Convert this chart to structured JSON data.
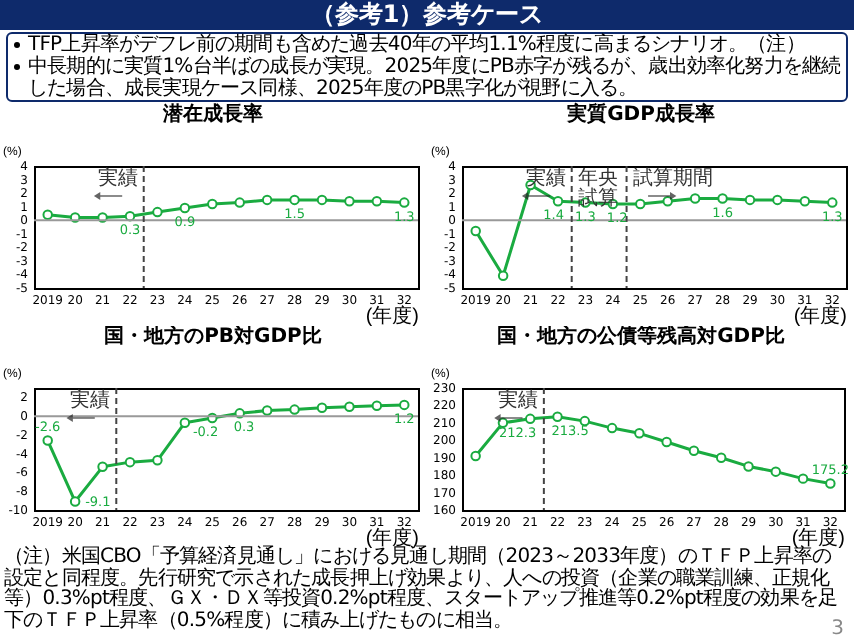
{
  "chart_data": [
    {
      "type": "other",
      "title": "（参考1）参考ケース",
      "annotations": [
        "TFP上昇率がデフレ前の期間も含めた過去40年の平均1.1%程度に高まるシナリオ。（注）",
        "中長期的に実質1%台半ばの成長が実現。2025年度にPB赤字が残るが、歳出効率化努力を継続した場合、成長実現ケース同様、2025年度のPB黒字化が視野に入る。"
      ]
    },
    {
      "type": "line",
      "title": "潜在成長率",
      "ylabel": "(%)",
      "xlabel": "(年度)",
      "marker": "circle",
      "line_style": "solid",
      "x": [
        2019,
        2020,
        2021,
        2022,
        2023,
        2024,
        2025,
        2026,
        2027,
        2028,
        2029,
        2030,
        2031,
        2032
      ],
      "xlim": [
        2018.5,
        2032.5
      ],
      "xticks": [
        {
          "value": 2019,
          "label": "2019"
        },
        {
          "value": 2020,
          "label": "20"
        },
        {
          "value": 2021,
          "label": "21"
        },
        {
          "value": 2022,
          "label": "22"
        },
        {
          "value": 2023,
          "label": "23"
        },
        {
          "value": 2024,
          "label": "24"
        },
        {
          "value": 2025,
          "label": "25"
        },
        {
          "value": 2026,
          "label": "26"
        },
        {
          "value": 2027,
          "label": "27"
        },
        {
          "value": 2028,
          "label": "28"
        },
        {
          "value": 2029,
          "label": "29"
        },
        {
          "value": 2030,
          "label": "30"
        },
        {
          "value": 2031,
          "label": "31"
        },
        {
          "value": 2032,
          "label": "32"
        }
      ],
      "ylim": [
        -5,
        4
      ],
      "yticks": [
        -5,
        -4,
        -3,
        -2,
        -1,
        0,
        1,
        2,
        3,
        4
      ],
      "series": [
        {
          "color": "#1aab40",
          "values": [
            0.4,
            0.2,
            0.2,
            0.3,
            0.6,
            0.9,
            1.2,
            1.3,
            1.5,
            1.5,
            1.5,
            1.4,
            1.4,
            1.3
          ],
          "value_labels": [
            null,
            null,
            null,
            "0.3",
            null,
            "0.9",
            null,
            null,
            null,
            "1.5",
            null,
            null,
            null,
            "1.3"
          ]
        }
      ],
      "ref_lines": [
        {
          "axis": "y",
          "value": 0,
          "color": "#999999",
          "line_style": "solid"
        },
        {
          "axis": "x",
          "value": 2022.5,
          "color": "#444444",
          "line_style": "dashed"
        }
      ],
      "annotations": [
        "実績"
      ]
    },
    {
      "type": "line",
      "title": "実質GDP成長率",
      "ylabel": "(%)",
      "xlabel": "(年度)",
      "marker": "circle",
      "line_style": "solid",
      "x": [
        2019,
        2020,
        2021,
        2022,
        2023,
        2024,
        2025,
        2026,
        2027,
        2028,
        2029,
        2030,
        2031,
        2032
      ],
      "xlim": [
        2018.5,
        2032.5
      ],
      "xticks": [
        {
          "value": 2019,
          "label": "2019"
        },
        {
          "value": 2020,
          "label": "20"
        },
        {
          "value": 2021,
          "label": "21"
        },
        {
          "value": 2022,
          "label": "22"
        },
        {
          "value": 2023,
          "label": "23"
        },
        {
          "value": 2024,
          "label": "24"
        },
        {
          "value": 2025,
          "label": "25"
        },
        {
          "value": 2026,
          "label": "26"
        },
        {
          "value": 2027,
          "label": "27"
        },
        {
          "value": 2028,
          "label": "28"
        },
        {
          "value": 2029,
          "label": "29"
        },
        {
          "value": 2030,
          "label": "30"
        },
        {
          "value": 2031,
          "label": "31"
        },
        {
          "value": 2032,
          "label": "32"
        }
      ],
      "ylim": [
        -5,
        4
      ],
      "yticks": [
        -5,
        -4,
        -3,
        -2,
        -1,
        0,
        1,
        2,
        3,
        4
      ],
      "series": [
        {
          "color": "#1aab40",
          "values": [
            -0.8,
            -4.1,
            2.6,
            1.4,
            1.3,
            1.2,
            1.2,
            1.4,
            1.6,
            1.6,
            1.5,
            1.5,
            1.4,
            1.3
          ],
          "value_labels": [
            null,
            null,
            null,
            "1.4",
            "1.3",
            "1.2",
            null,
            null,
            null,
            "1.6",
            null,
            null,
            null,
            "1.3"
          ]
        }
      ],
      "ref_lines": [
        {
          "axis": "y",
          "value": 0,
          "color": "#999999",
          "line_style": "solid"
        },
        {
          "axis": "x",
          "value": 2022.5,
          "color": "#444444",
          "line_style": "dashed"
        },
        {
          "axis": "x",
          "value": 2024.5,
          "color": "#444444",
          "line_style": "dashed"
        }
      ],
      "annotations": [
        "実績",
        "年央試算",
        "試算期間"
      ]
    },
    {
      "type": "line",
      "title": "国・地方のPB対GDP比",
      "ylabel": "(%)",
      "xlabel": "(年度)",
      "marker": "circle",
      "line_style": "solid",
      "x": [
        2019,
        2020,
        2021,
        2022,
        2023,
        2024,
        2025,
        2026,
        2027,
        2028,
        2029,
        2030,
        2031,
        2032
      ],
      "xlim": [
        2018.5,
        2032.5
      ],
      "xticks": [
        {
          "value": 2019,
          "label": "2019"
        },
        {
          "value": 2020,
          "label": "20"
        },
        {
          "value": 2021,
          "label": "21"
        },
        {
          "value": 2022,
          "label": "22"
        },
        {
          "value": 2023,
          "label": "23"
        },
        {
          "value": 2024,
          "label": "24"
        },
        {
          "value": 2025,
          "label": "25"
        },
        {
          "value": 2026,
          "label": "26"
        },
        {
          "value": 2027,
          "label": "27"
        },
        {
          "value": 2028,
          "label": "28"
        },
        {
          "value": 2029,
          "label": "29"
        },
        {
          "value": 2030,
          "label": "30"
        },
        {
          "value": 2031,
          "label": "31"
        },
        {
          "value": 2032,
          "label": "32"
        }
      ],
      "ylim": [
        -10,
        3
      ],
      "yticks": [
        -10,
        -8,
        -6,
        -4,
        -2,
        0,
        2
      ],
      "series": [
        {
          "color": "#1aab40",
          "values": [
            -2.6,
            -9.1,
            -5.4,
            -4.9,
            -4.7,
            -0.7,
            -0.2,
            0.3,
            0.6,
            0.7,
            0.9,
            1.0,
            1.1,
            1.2
          ],
          "value_labels": [
            "-2.6",
            "-9.1",
            null,
            null,
            null,
            null,
            "-0.2",
            "0.3",
            null,
            null,
            null,
            null,
            null,
            "1.2"
          ]
        }
      ],
      "ref_lines": [
        {
          "axis": "y",
          "value": 0,
          "color": "#999999",
          "line_style": "solid"
        },
        {
          "axis": "x",
          "value": 2021.5,
          "color": "#444444",
          "line_style": "dashed"
        }
      ],
      "annotations": [
        "実績"
      ]
    },
    {
      "type": "line",
      "title": "国・地方の公債等残高対GDP比",
      "ylabel": "(%)",
      "xlabel": "(年度)",
      "marker": "circle",
      "line_style": "solid",
      "x": [
        2019,
        2020,
        2021,
        2022,
        2023,
        2024,
        2025,
        2026,
        2027,
        2028,
        2029,
        2030,
        2031,
        2032
      ],
      "xlim": [
        2018.5,
        2032.5
      ],
      "xticks": [
        {
          "value": 2019,
          "label": "2019"
        },
        {
          "value": 2020,
          "label": "20"
        },
        {
          "value": 2021,
          "label": "21"
        },
        {
          "value": 2022,
          "label": "22"
        },
        {
          "value": 2023,
          "label": "23"
        },
        {
          "value": 2024,
          "label": "24"
        },
        {
          "value": 2025,
          "label": "25"
        },
        {
          "value": 2026,
          "label": "26"
        },
        {
          "value": 2027,
          "label": "27"
        },
        {
          "value": 2028,
          "label": "28"
        },
        {
          "value": 2029,
          "label": "29"
        },
        {
          "value": 2030,
          "label": "30"
        },
        {
          "value": 2031,
          "label": "31"
        },
        {
          "value": 2032,
          "label": "32"
        }
      ],
      "ylim": [
        160,
        230
      ],
      "yticks": [
        160,
        170,
        180,
        190,
        200,
        210,
        220,
        230
      ],
      "series": [
        {
          "color": "#1aab40",
          "values": [
            191,
            210,
            212.3,
            213.5,
            211,
            207,
            204,
            199,
            194,
            190,
            185,
            182,
            178,
            175.2
          ],
          "value_labels": [
            null,
            null,
            "212.3",
            "213.5",
            null,
            null,
            null,
            null,
            null,
            null,
            null,
            null,
            null,
            "175.2"
          ]
        }
      ],
      "ref_lines": [
        {
          "axis": "x",
          "value": 2021.5,
          "color": "#444444",
          "line_style": "dashed"
        }
      ],
      "annotations": [
        "実績"
      ]
    },
    {
      "type": "other",
      "annotations": [
        "（注）米国CBO「予算経済見通し」における見通し期間（2023～2033年度）のＴＦＰ上昇率の設定と同程度。先行研究で示された成長押上げ効果より、人への投資（企業の職業訓練、正規化等）0.3%pt程度、ＧＸ・ＤＸ等投資0.2%pt程度、スタートアップ推進等0.2%pt程度の効果を足下のＴＦＰ上昇率（0.5%程度）に積み上げたものに相当。",
        "3"
      ]
    }
  ]
}
